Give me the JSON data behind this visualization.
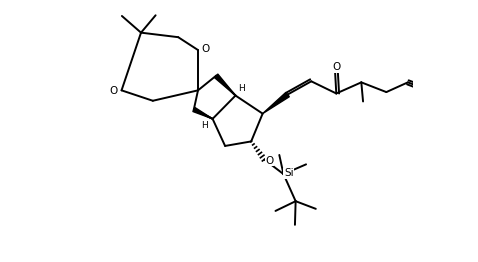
{
  "background": "#ffffff",
  "lc": "#000000",
  "lw": 1.4,
  "blw": 3.5,
  "fig_w": 4.78,
  "fig_h": 2.62,
  "dpi": 100,
  "xlim": [
    0,
    10
  ],
  "ylim": [
    -2.0,
    5.5
  ]
}
